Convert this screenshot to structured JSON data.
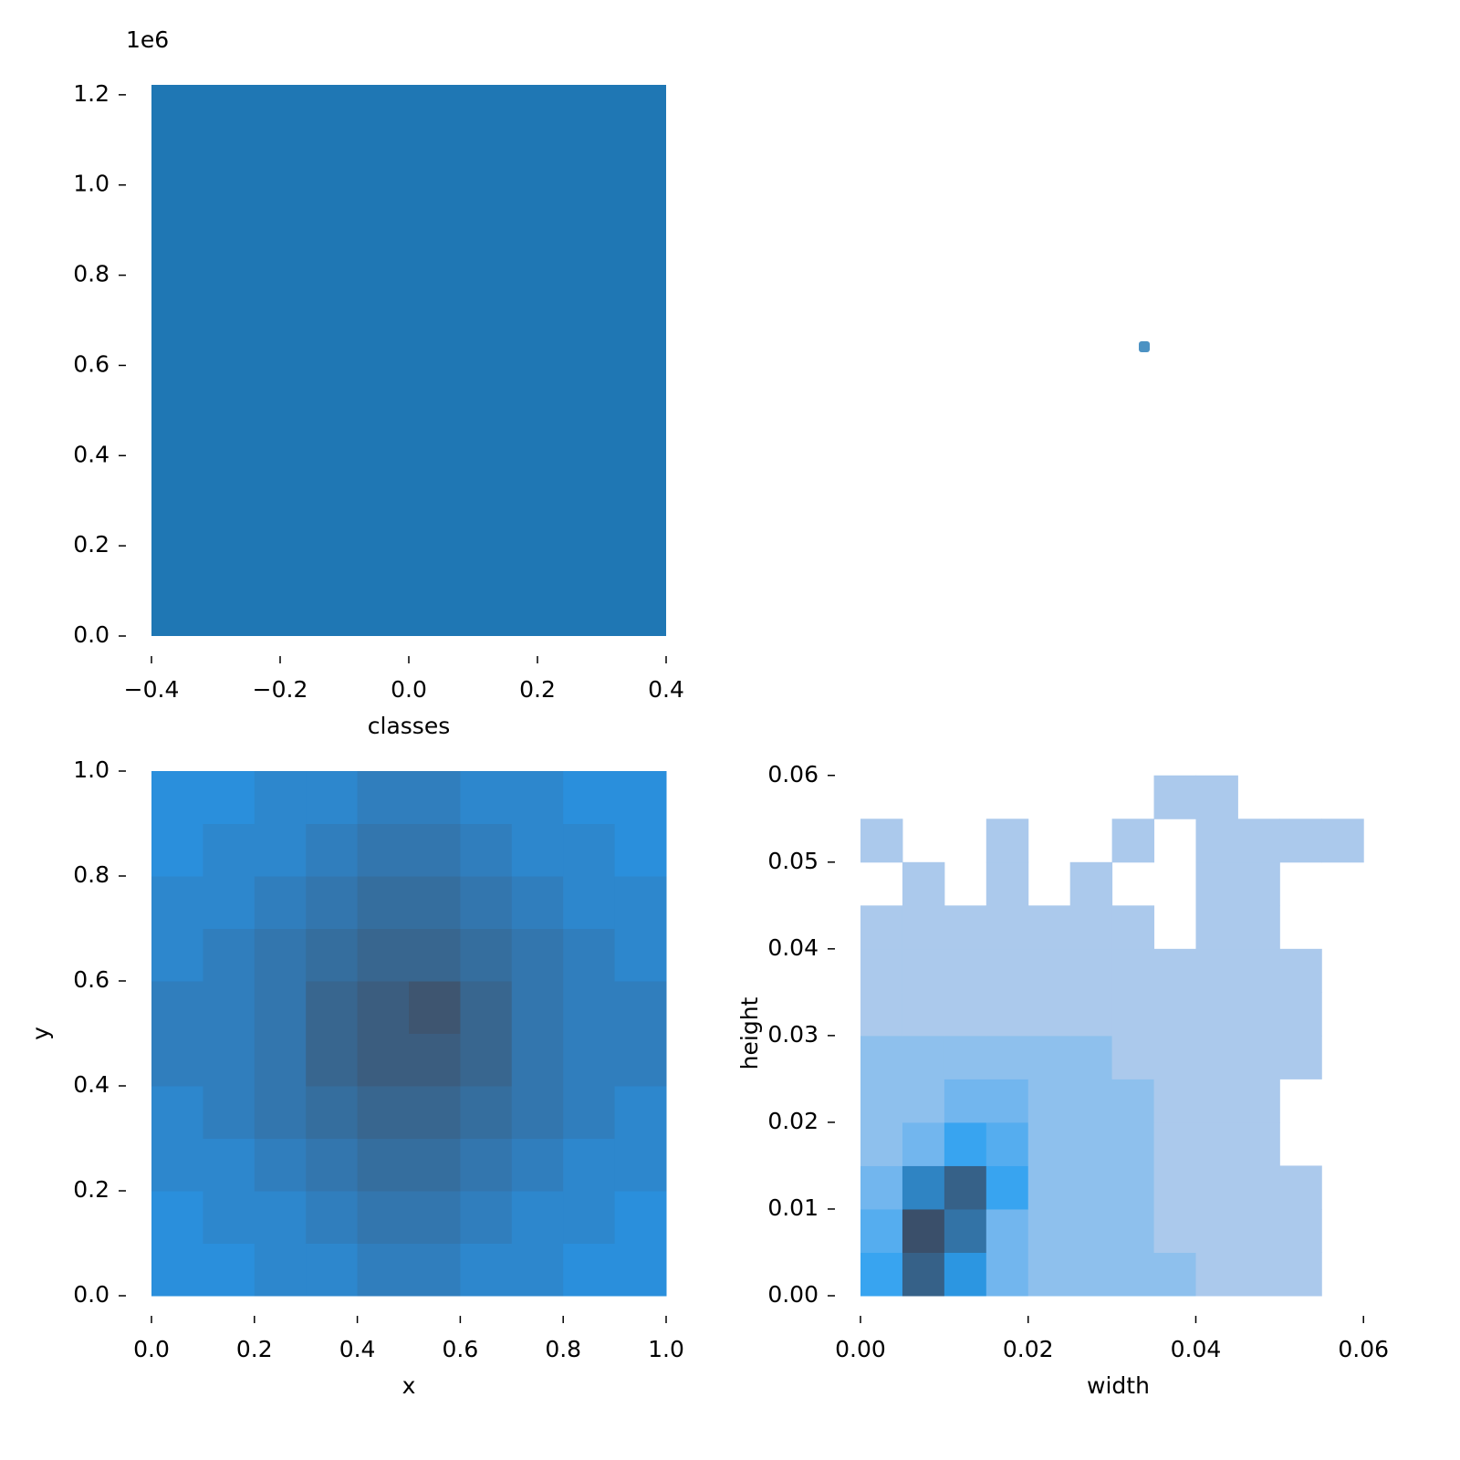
{
  "chart_data": [
    {
      "type": "histogram",
      "xlabel": "classes",
      "y_offset_label": "1e6",
      "color": "#1f77b4",
      "bins": [
        -0.4,
        0.4
      ],
      "counts": [
        1222000
      ],
      "xlim": [
        -0.4,
        0.4
      ],
      "ylim": [
        0,
        1222000
      ],
      "xticks": [
        {
          "value": -0.4,
          "label": "−0.4"
        },
        {
          "value": -0.2,
          "label": "−0.2"
        },
        {
          "value": 0,
          "label": "0.0"
        },
        0.2,
        0.4
      ],
      "yticks": [
        {
          "value": 0,
          "label": "0.0"
        },
        {
          "value": 200000,
          "label": "0.2"
        },
        {
          "value": 400000,
          "label": "0.4"
        },
        {
          "value": 600000,
          "label": "0.6"
        },
        {
          "value": 800000,
          "label": "0.8"
        },
        {
          "value": 1000000,
          "label": "1.0"
        },
        {
          "value": 1200000,
          "label": "1.2"
        }
      ]
    },
    {
      "type": "heatmap2d",
      "xlabel": "x",
      "ylabel": "y",
      "colormap": [
        "#2a8fdc",
        "#3e5570"
      ],
      "x_bins": [
        0,
        0.1,
        0.2,
        0.3,
        0.4,
        0.5,
        0.6,
        0.7,
        0.8,
        0.9,
        1.0
      ],
      "y_bins": [
        0,
        0.1,
        0.2,
        0.3,
        0.4,
        0.5,
        0.6,
        0.7,
        0.8,
        0.9,
        1.0
      ],
      "counts": [
        [
          3,
          3,
          4,
          4,
          5,
          5,
          4,
          4,
          3,
          3
        ],
        [
          3,
          4,
          4,
          5,
          6,
          6,
          5,
          4,
          4,
          3
        ],
        [
          4,
          4,
          5,
          6,
          7,
          7,
          6,
          5,
          4,
          4
        ],
        [
          4,
          5,
          6,
          7,
          8,
          8,
          7,
          6,
          5,
          4
        ],
        [
          5,
          5,
          6,
          8,
          9,
          9,
          8,
          6,
          5,
          5
        ],
        [
          5,
          5,
          6,
          8,
          9,
          10,
          8,
          6,
          5,
          5
        ],
        [
          4,
          5,
          6,
          7,
          8,
          8,
          7,
          6,
          5,
          4
        ],
        [
          4,
          4,
          5,
          6,
          7,
          7,
          6,
          5,
          4,
          4
        ],
        [
          3,
          4,
          4,
          5,
          6,
          6,
          5,
          4,
          4,
          3
        ],
        [
          3,
          3,
          4,
          4,
          5,
          5,
          4,
          4,
          3,
          3
        ]
      ],
      "xlim": [
        0,
        1.0
      ],
      "ylim": [
        0,
        1.0
      ],
      "xticks": [
        {
          "value": 0,
          "label": "0.0"
        },
        0.2,
        0.4,
        0.6,
        0.8,
        {
          "value": 1.0,
          "label": "1.0"
        }
      ],
      "yticks": [
        {
          "value": 0,
          "label": "0.0"
        },
        0.2,
        0.4,
        0.6,
        0.8,
        {
          "value": 1.0,
          "label": "1.0"
        }
      ]
    },
    {
      "type": "heatmap2d",
      "xlabel": "width",
      "ylabel": "height",
      "colormap": [
        "#abc9ec",
        "#2a9ff0",
        "#3a4f6a"
      ],
      "x_bins": [
        0,
        0.005,
        0.01,
        0.015,
        0.02,
        0.025,
        0.03,
        0.035,
        0.04,
        0.045,
        0.05,
        0.055,
        0.06
      ],
      "y_bins": [
        0,
        0.005,
        0.01,
        0.015,
        0.02,
        0.025,
        0.03,
        0.035,
        0.04,
        0.045,
        0.05,
        0.055,
        0.06
      ],
      "counts": [
        [
          5,
          9,
          6,
          3,
          2,
          2,
          2,
          2,
          1,
          1,
          1,
          0
        ],
        [
          4,
          10,
          8,
          3,
          2,
          2,
          2,
          1,
          1,
          1,
          1,
          0
        ],
        [
          3,
          7,
          9,
          5,
          2,
          2,
          2,
          1,
          1,
          1,
          1,
          0
        ],
        [
          2,
          3,
          5,
          4,
          2,
          2,
          2,
          1,
          1,
          1,
          0,
          0
        ],
        [
          2,
          2,
          3,
          3,
          2,
          2,
          2,
          1,
          1,
          1,
          0,
          0
        ],
        [
          2,
          2,
          2,
          2,
          2,
          2,
          1,
          1,
          1,
          1,
          1,
          0
        ],
        [
          1,
          1,
          1,
          1,
          1,
          1,
          1,
          1,
          1,
          1,
          1,
          0
        ],
        [
          1,
          1,
          1,
          1,
          1,
          1,
          1,
          1,
          1,
          1,
          1,
          0
        ],
        [
          1,
          1,
          1,
          1,
          1,
          1,
          1,
          0,
          1,
          1,
          0,
          0
        ],
        [
          0,
          1,
          0,
          1,
          0,
          1,
          0,
          0,
          1,
          1,
          0,
          0
        ],
        [
          1,
          0,
          0,
          1,
          0,
          0,
          1,
          0,
          1,
          1,
          1,
          1
        ],
        [
          0,
          0,
          0,
          0,
          0,
          0,
          0,
          1,
          1,
          0,
          0,
          0
        ]
      ],
      "xlim": [
        0,
        0.0615
      ],
      "ylim": [
        0,
        0.0605
      ],
      "xticks": [
        {
          "value": 0,
          "label": "0.00"
        },
        0.02,
        0.04,
        0.06
      ],
      "yticks": [
        {
          "value": 0,
          "label": "0.00"
        },
        0.01,
        0.02,
        0.03,
        0.04,
        0.05,
        0.06
      ]
    }
  ]
}
